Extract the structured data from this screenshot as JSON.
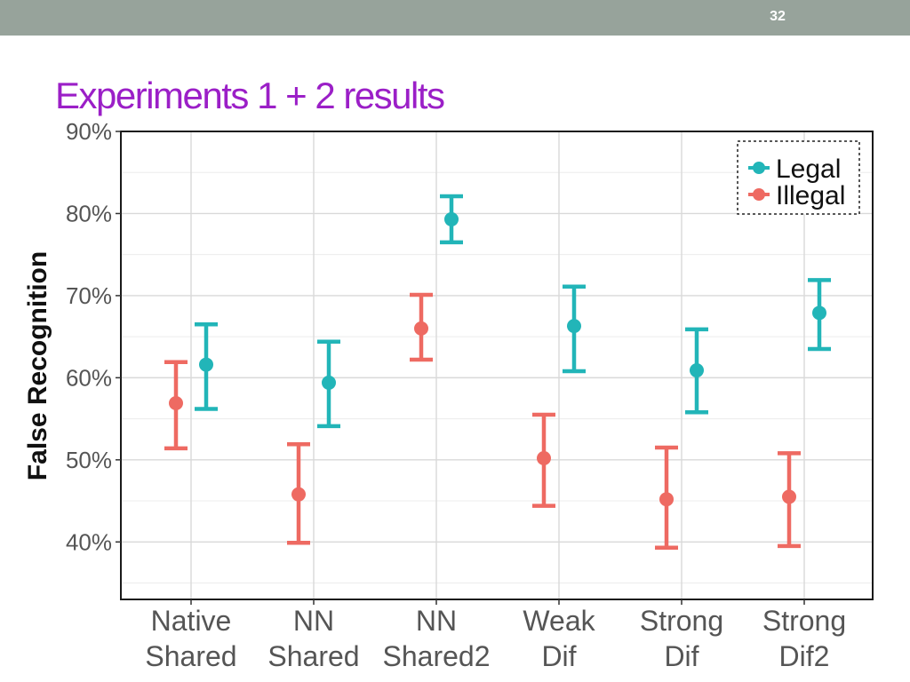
{
  "slide": {
    "number": "32",
    "title": "Experiments 1 + 2 results"
  },
  "colors": {
    "top_bar": "#97a39b",
    "title": "#9b1fc7"
  },
  "chart_data": {
    "type": "scatter",
    "subtype": "point-with-error-bars",
    "title": "",
    "xlabel": "",
    "ylabel": "False Recognition",
    "ylim": [
      33,
      90
    ],
    "yticks": [
      40,
      50,
      60,
      70,
      80,
      90
    ],
    "ytick_labels": [
      "40%",
      "50%",
      "60%",
      "70%",
      "80%",
      "90%"
    ],
    "grid": true,
    "legend": {
      "placement": "top-right",
      "boxed": true,
      "style": "dashed"
    },
    "categories": [
      [
        "Native",
        "Shared"
      ],
      [
        "NN",
        "Shared"
      ],
      [
        "NN",
        "Shared2"
      ],
      [
        "Weak",
        "Dif"
      ],
      [
        "Strong",
        "Dif"
      ],
      [
        "Strong",
        "Dif2"
      ]
    ],
    "series": [
      {
        "name": "Legal",
        "color": "#22b5b8",
        "values": [
          61.6,
          59.4,
          79.3,
          66.3,
          60.9,
          67.9
        ],
        "lower": [
          56.2,
          54.1,
          76.5,
          60.8,
          55.8,
          63.5
        ],
        "upper": [
          66.5,
          64.4,
          82.1,
          71.1,
          65.9,
          71.9
        ]
      },
      {
        "name": "Illegal",
        "color": "#ee6a62",
        "values": [
          56.9,
          45.8,
          66.0,
          50.2,
          45.2,
          45.5
        ],
        "lower": [
          51.4,
          39.9,
          62.2,
          44.4,
          39.3,
          39.5
        ],
        "upper": [
          61.9,
          51.9,
          70.1,
          55.5,
          51.5,
          50.8
        ]
      }
    ]
  }
}
